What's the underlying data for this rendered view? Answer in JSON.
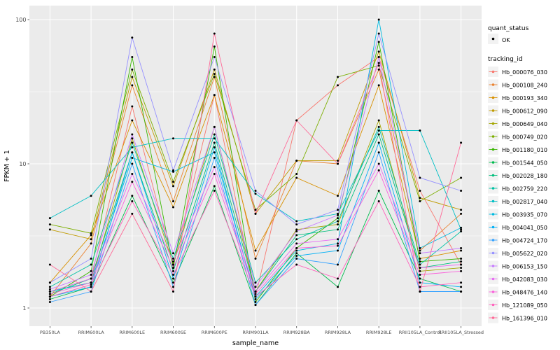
{
  "chart_data": {
    "type": "line",
    "title": "",
    "xlabel": "sample_name",
    "ylabel": "FPKM + 1",
    "y_scale": "log10",
    "y_ticks": [
      1,
      10,
      100
    ],
    "y_minor": [
      3.1623,
      31.623
    ],
    "ylim": [
      0.95,
      110
    ],
    "grid": true,
    "legend_position": "right",
    "panel_bg": "#EBEBEB",
    "grid_color": "#FFFFFF",
    "point_color": "#000000",
    "legend": {
      "quant_status_title": "quant_status",
      "quant_status_label": "OK",
      "tracking_id_title": "tracking_id"
    },
    "categories": [
      "PB350LA",
      "RRIM600LA",
      "RRIM600LE",
      "RRIM600SE",
      "RRIM600PE",
      "RRIM901LA",
      "RRIM928BA",
      "RRIM928LA",
      "RRIM928LE",
      "RRII105LA_Control",
      "RRII105LA_Stressed"
    ],
    "series": [
      {
        "name": "Hb_000076_030",
        "color": "#F8766D",
        "values": [
          1.3,
          1.6,
          25,
          2.0,
          30,
          1.2,
          20,
          35,
          55,
          6.5,
          2.0
        ]
      },
      {
        "name": "Hb_000108_240",
        "color": "#EA8331",
        "values": [
          1.2,
          2.8,
          35,
          5.5,
          40,
          2.2,
          10.5,
          10,
          45,
          2.5,
          4.5
        ]
      },
      {
        "name": "Hb_000193_340",
        "color": "#D89000",
        "values": [
          1.5,
          3.2,
          20,
          5.0,
          30,
          2.5,
          8.0,
          6.0,
          35,
          2.2,
          2.5
        ]
      },
      {
        "name": "Hb_000612_090",
        "color": "#C09B00",
        "values": [
          3.5,
          3.0,
          40,
          7.0,
          45,
          4.5,
          10.5,
          10.5,
          60,
          5.8,
          4.8
        ]
      },
      {
        "name": "Hb_000649_040",
        "color": "#A3A500",
        "values": [
          1.3,
          1.5,
          15,
          2.0,
          18,
          1.3,
          3.5,
          3.8,
          20,
          1.8,
          1.9
        ]
      },
      {
        "name": "Hb_000749_020",
        "color": "#7CAE00",
        "values": [
          3.8,
          3.3,
          45,
          7.5,
          42,
          4.8,
          8.5,
          40,
          48,
          5.5,
          8.0
        ]
      },
      {
        "name": "Hb_001180_010",
        "color": "#39B600",
        "values": [
          1.2,
          1.8,
          55,
          1.9,
          65,
          1.1,
          2.6,
          4.2,
          70,
          2.1,
          2.2
        ]
      },
      {
        "name": "Hb_001544_050",
        "color": "#00BB4E",
        "values": [
          1.15,
          1.4,
          6.0,
          1.5,
          7.0,
          1.05,
          2.4,
          1.4,
          6.5,
          1.6,
          1.3
        ]
      },
      {
        "name": "Hb_002028_180",
        "color": "#00BF7D",
        "values": [
          1.25,
          1.6,
          12,
          1.8,
          14,
          1.3,
          3.2,
          3.5,
          16,
          1.9,
          2.1
        ]
      },
      {
        "name": "Hb_002759_220",
        "color": "#00C1A3",
        "values": [
          1.4,
          2.0,
          14,
          2.2,
          16,
          1.5,
          3.0,
          4.0,
          18,
          2.0,
          3.4
        ]
      },
      {
        "name": "Hb_002817_040",
        "color": "#00BFC4",
        "values": [
          4.2,
          6.0,
          13,
          15,
          15,
          6.2,
          4.0,
          4.5,
          17,
          17,
          3.5
        ]
      },
      {
        "name": "Hb_003935_070",
        "color": "#00BAE0",
        "values": [
          1.3,
          1.5,
          11,
          8.8,
          12,
          1.2,
          2.5,
          2.8,
          100,
          2.6,
          3.6
        ]
      },
      {
        "name": "Hb_004041_050",
        "color": "#00B0F6",
        "values": [
          1.2,
          1.4,
          12,
          1.6,
          13,
          1.15,
          2.3,
          2.5,
          14,
          1.5,
          1.4
        ]
      },
      {
        "name": "Hb_004724_170",
        "color": "#35A2FF",
        "values": [
          1.1,
          1.3,
          10,
          1.4,
          11,
          1.05,
          2.2,
          2.0,
          12,
          1.3,
          1.3
        ]
      },
      {
        "name": "Hb_005622_020",
        "color": "#9590FF",
        "values": [
          1.5,
          2.2,
          75,
          9.0,
          55,
          6.5,
          3.8,
          4.8,
          80,
          8.0,
          6.5
        ]
      },
      {
        "name": "Hb_006153_150",
        "color": "#C77CFF",
        "values": [
          1.35,
          1.7,
          16,
          2.4,
          18,
          1.4,
          3.4,
          4.4,
          55,
          2.4,
          2.6
        ]
      },
      {
        "name": "Hb_042083_030",
        "color": "#E76BF3",
        "values": [
          1.3,
          1.6,
          8.5,
          2.1,
          9.5,
          1.3,
          2.8,
          3.0,
          10,
          1.9,
          2.0
        ]
      },
      {
        "name": "Hb_048476_140",
        "color": "#FA62DB",
        "values": [
          1.25,
          1.5,
          7.5,
          1.9,
          8.5,
          1.25,
          2.6,
          2.7,
          9.0,
          1.7,
          1.8
        ]
      },
      {
        "name": "Hb_121089_050",
        "color": "#FF62BC",
        "values": [
          1.2,
          1.45,
          5.5,
          1.7,
          6.5,
          1.2,
          2.0,
          1.6,
          5.5,
          1.4,
          1.5
        ]
      },
      {
        "name": "Hb_161396_010",
        "color": "#FF6A98",
        "values": [
          2.0,
          1.3,
          4.5,
          1.3,
          80,
          4.5,
          20,
          10,
          50,
          1.3,
          14
        ]
      }
    ]
  }
}
